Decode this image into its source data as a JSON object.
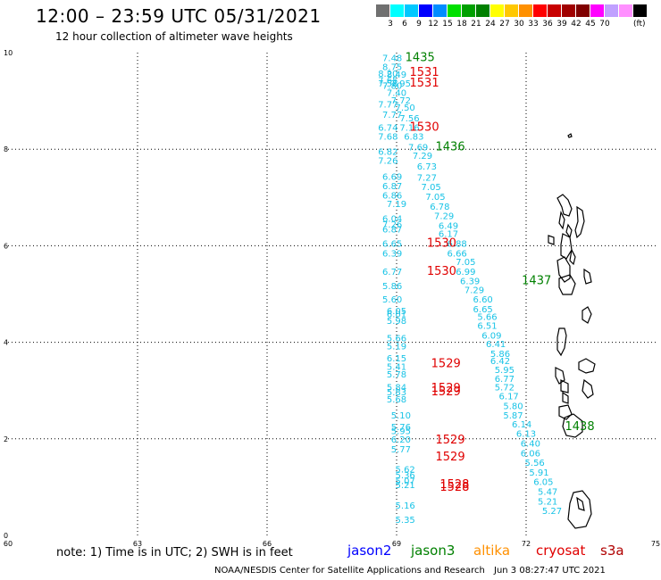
{
  "title": "12:00 – 23:59 UTC 05/31/2021",
  "subtitle": "12 hour collection of altimeter wave heights",
  "color_scale": {
    "colors": [
      "#707070",
      "#00ffff",
      "#00c8ff",
      "#0000ff",
      "#008cff",
      "#00e000",
      "#00a000",
      "#008000",
      "#ffff00",
      "#ffc800",
      "#ff9000",
      "#ff0000",
      "#c80000",
      "#a00000",
      "#800000",
      "#ff00ff",
      "#c0a0ff",
      "#ff90ff",
      "#000000"
    ],
    "tick_labels": [
      "3",
      "6",
      "9",
      "12",
      "15",
      "18",
      "21",
      "24",
      "27",
      "30",
      "33",
      "36",
      "39",
      "42",
      "45",
      "70"
    ],
    "unit": "(ft)"
  },
  "chart_data": {
    "type": "scatter",
    "x_ticks": [
      "60",
      "63",
      "66",
      "69",
      "72",
      "75"
    ],
    "y_ticks": [
      "10",
      "8",
      "6",
      "4",
      "2",
      "0"
    ],
    "xlim": [
      60,
      75
    ],
    "ylim": [
      0,
      10
    ],
    "grid": true,
    "wave_heights_ft": [
      {
        "lon": 68.9,
        "lat": 9.82,
        "v": "7.48"
      },
      {
        "lon": 68.9,
        "lat": 9.64,
        "v": "8.75"
      },
      {
        "lon": 68.8,
        "lat": 9.5,
        "v": "8.20"
      },
      {
        "lon": 69.0,
        "lat": 9.48,
        "v": "8.49"
      },
      {
        "lon": 68.8,
        "lat": 9.36,
        "v": "7.65"
      },
      {
        "lon": 68.8,
        "lat": 9.3,
        "v": "7.58"
      },
      {
        "lon": 69.1,
        "lat": 9.3,
        "v": "7.95"
      },
      {
        "lon": 68.9,
        "lat": 9.25,
        "v": "7.80"
      },
      {
        "lon": 69.0,
        "lat": 9.1,
        "v": "7.40"
      },
      {
        "lon": 69.1,
        "lat": 8.95,
        "v": "7.72"
      },
      {
        "lon": 68.8,
        "lat": 8.86,
        "v": "7.77"
      },
      {
        "lon": 69.2,
        "lat": 8.8,
        "v": "7.50"
      },
      {
        "lon": 68.9,
        "lat": 8.65,
        "v": "7.77"
      },
      {
        "lon": 69.3,
        "lat": 8.58,
        "v": "7.56"
      },
      {
        "lon": 68.8,
        "lat": 8.38,
        "v": "6.74"
      },
      {
        "lon": 69.3,
        "lat": 8.38,
        "v": "7.16"
      },
      {
        "lon": 68.8,
        "lat": 8.2,
        "v": "7.68"
      },
      {
        "lon": 69.4,
        "lat": 8.2,
        "v": "6.83"
      },
      {
        "lon": 69.5,
        "lat": 7.98,
        "v": "7.69"
      },
      {
        "lon": 68.8,
        "lat": 7.88,
        "v": "6.82"
      },
      {
        "lon": 69.6,
        "lat": 7.8,
        "v": "7.29"
      },
      {
        "lon": 68.8,
        "lat": 7.7,
        "v": "7.26"
      },
      {
        "lon": 69.7,
        "lat": 7.58,
        "v": "6.73"
      },
      {
        "lon": 68.9,
        "lat": 7.37,
        "v": "6.69"
      },
      {
        "lon": 69.7,
        "lat": 7.35,
        "v": "7.27"
      },
      {
        "lon": 68.9,
        "lat": 7.17,
        "v": "6.87"
      },
      {
        "lon": 69.8,
        "lat": 7.15,
        "v": "7.05"
      },
      {
        "lon": 68.9,
        "lat": 6.98,
        "v": "6.86"
      },
      {
        "lon": 69.9,
        "lat": 6.95,
        "v": "7.05"
      },
      {
        "lon": 69.0,
        "lat": 6.8,
        "v": "7.19"
      },
      {
        "lon": 70.0,
        "lat": 6.75,
        "v": "6.78"
      },
      {
        "lon": 70.1,
        "lat": 6.55,
        "v": "7.29"
      },
      {
        "lon": 68.9,
        "lat": 6.5,
        "v": "6.04"
      },
      {
        "lon": 68.9,
        "lat": 6.38,
        "v": "7.26"
      },
      {
        "lon": 70.2,
        "lat": 6.35,
        "v": "6.49"
      },
      {
        "lon": 68.9,
        "lat": 6.28,
        "v": "6.87"
      },
      {
        "lon": 70.2,
        "lat": 6.18,
        "v": "6.17"
      },
      {
        "lon": 68.9,
        "lat": 5.98,
        "v": "6.65"
      },
      {
        "lon": 70.4,
        "lat": 5.98,
        "v": "6.88"
      },
      {
        "lon": 68.9,
        "lat": 5.78,
        "v": "6.39"
      },
      {
        "lon": 70.4,
        "lat": 5.78,
        "v": "6.66"
      },
      {
        "lon": 70.6,
        "lat": 5.6,
        "v": "7.05"
      },
      {
        "lon": 68.9,
        "lat": 5.4,
        "v": "6.77"
      },
      {
        "lon": 70.6,
        "lat": 5.4,
        "v": "6.99"
      },
      {
        "lon": 70.7,
        "lat": 5.2,
        "v": "6.39"
      },
      {
        "lon": 68.9,
        "lat": 5.1,
        "v": "5.86"
      },
      {
        "lon": 70.8,
        "lat": 5.02,
        "v": "7.29"
      },
      {
        "lon": 68.9,
        "lat": 4.82,
        "v": "5.60"
      },
      {
        "lon": 71.0,
        "lat": 4.82,
        "v": "6.60"
      },
      {
        "lon": 71.0,
        "lat": 4.62,
        "v": "6.65"
      },
      {
        "lon": 69.0,
        "lat": 4.58,
        "v": "6.05"
      },
      {
        "lon": 69.0,
        "lat": 4.52,
        "v": "6.01"
      },
      {
        "lon": 71.1,
        "lat": 4.46,
        "v": "5.66"
      },
      {
        "lon": 69.0,
        "lat": 4.38,
        "v": "5.98"
      },
      {
        "lon": 71.1,
        "lat": 4.28,
        "v": "6.51"
      },
      {
        "lon": 71.2,
        "lat": 4.08,
        "v": "6.09"
      },
      {
        "lon": 69.0,
        "lat": 4.02,
        "v": "5.66"
      },
      {
        "lon": 71.3,
        "lat": 3.9,
        "v": "6.41"
      },
      {
        "lon": 69.0,
        "lat": 3.85,
        "v": "5.19"
      },
      {
        "lon": 71.4,
        "lat": 3.7,
        "v": "5.86"
      },
      {
        "lon": 69.0,
        "lat": 3.6,
        "v": "6.15"
      },
      {
        "lon": 71.4,
        "lat": 3.55,
        "v": "6.42"
      },
      {
        "lon": 69.0,
        "lat": 3.43,
        "v": "5.41"
      },
      {
        "lon": 71.5,
        "lat": 3.36,
        "v": "5.95"
      },
      {
        "lon": 69.0,
        "lat": 3.27,
        "v": "5.78"
      },
      {
        "lon": 71.5,
        "lat": 3.18,
        "v": "6.77"
      },
      {
        "lon": 69.0,
        "lat": 3.0,
        "v": "5.84"
      },
      {
        "lon": 71.5,
        "lat": 3.0,
        "v": "5.72"
      },
      {
        "lon": 69.0,
        "lat": 2.9,
        "v": "5.83"
      },
      {
        "lon": 71.6,
        "lat": 2.82,
        "v": "6.17"
      },
      {
        "lon": 69.0,
        "lat": 2.75,
        "v": "5.68"
      },
      {
        "lon": 71.7,
        "lat": 2.62,
        "v": "5.80"
      },
      {
        "lon": 71.7,
        "lat": 2.42,
        "v": "5.87"
      },
      {
        "lon": 69.1,
        "lat": 2.42,
        "v": "5.10"
      },
      {
        "lon": 71.9,
        "lat": 2.24,
        "v": "6.14"
      },
      {
        "lon": 69.1,
        "lat": 2.18,
        "v": "5.76"
      },
      {
        "lon": 69.1,
        "lat": 2.1,
        "v": "5.95"
      },
      {
        "lon": 72.0,
        "lat": 2.04,
        "v": "6.13"
      },
      {
        "lon": 69.1,
        "lat": 1.92,
        "v": "6.20"
      },
      {
        "lon": 72.1,
        "lat": 1.84,
        "v": "6.40"
      },
      {
        "lon": 69.1,
        "lat": 1.72,
        "v": "5.77"
      },
      {
        "lon": 72.1,
        "lat": 1.64,
        "v": "6.06"
      },
      {
        "lon": 72.2,
        "lat": 1.44,
        "v": "5.56"
      },
      {
        "lon": 69.2,
        "lat": 1.3,
        "v": "5.62"
      },
      {
        "lon": 72.3,
        "lat": 1.24,
        "v": "5.91"
      },
      {
        "lon": 69.2,
        "lat": 1.18,
        "v": "5.36"
      },
      {
        "lon": 69.2,
        "lat": 1.06,
        "v": "5.07"
      },
      {
        "lon": 72.4,
        "lat": 1.04,
        "v": "6.05"
      },
      {
        "lon": 69.2,
        "lat": 0.98,
        "v": "5.21"
      },
      {
        "lon": 72.5,
        "lat": 0.84,
        "v": "5.47"
      },
      {
        "lon": 72.5,
        "lat": 0.64,
        "v": "5.21"
      },
      {
        "lon": 69.2,
        "lat": 0.55,
        "v": "5.16"
      },
      {
        "lon": 72.6,
        "lat": 0.44,
        "v": "5.27"
      },
      {
        "lon": 69.2,
        "lat": 0.26,
        "v": "5.35"
      }
    ],
    "pass_times": [
      {
        "lon": 69.2,
        "lat": 9.82,
        "t": "1435",
        "c": "g"
      },
      {
        "lon": 69.3,
        "lat": 9.52,
        "t": "1531",
        "c": "r"
      },
      {
        "lon": 69.3,
        "lat": 9.3,
        "t": "1531",
        "c": "r"
      },
      {
        "lon": 69.3,
        "lat": 8.38,
        "t": "1530",
        "c": "r"
      },
      {
        "lon": 69.9,
        "lat": 7.98,
        "t": "1436",
        "c": "g"
      },
      {
        "lon": 69.7,
        "lat": 5.98,
        "t": "1530",
        "c": "r"
      },
      {
        "lon": 69.7,
        "lat": 5.4,
        "t": "1530",
        "c": "r"
      },
      {
        "lon": 71.9,
        "lat": 5.2,
        "t": "1437",
        "c": "g"
      },
      {
        "lon": 69.8,
        "lat": 3.48,
        "t": "1529",
        "c": "r"
      },
      {
        "lon": 69.8,
        "lat": 2.98,
        "t": "1529",
        "c": "r"
      },
      {
        "lon": 69.8,
        "lat": 2.9,
        "t": "1529",
        "c": "r"
      },
      {
        "lon": 72.9,
        "lat": 2.18,
        "t": "1438",
        "c": "g"
      },
      {
        "lon": 69.9,
        "lat": 1.9,
        "t": "1529",
        "c": "r"
      },
      {
        "lon": 69.9,
        "lat": 1.55,
        "t": "1529",
        "c": "r"
      },
      {
        "lon": 70.0,
        "lat": 0.98,
        "t": "1528",
        "c": "r"
      },
      {
        "lon": 70.0,
        "lat": 0.92,
        "t": "1528",
        "c": "r"
      }
    ]
  },
  "note": "note: 1) Time is in UTC; 2) SWH is in feet",
  "satellites": [
    {
      "name": "jason2",
      "color": "#0000ff"
    },
    {
      "name": "jason3",
      "color": "#008000"
    },
    {
      "name": "altika",
      "color": "#ff9000"
    },
    {
      "name": "cryosat",
      "color": "#e00000"
    },
    {
      "name": "s3a",
      "color": "#b00000"
    }
  ],
  "credit": "NOAA/NESDIS Center for Satellite Applications and Research",
  "timestamp": "Jun  3 08:27:47 UTC 2021"
}
